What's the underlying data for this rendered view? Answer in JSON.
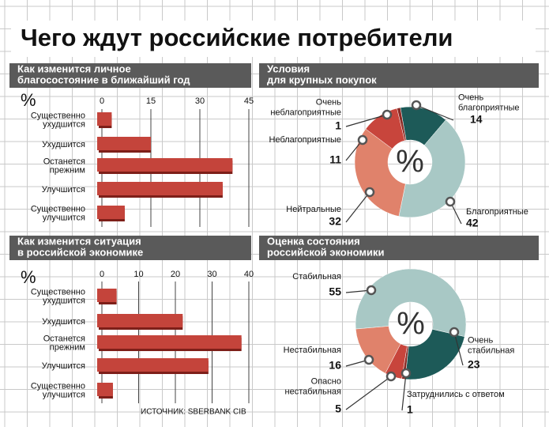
{
  "title": "Чего ждут российские потребители",
  "source": "ИСТОЧНИК: SBERBANK CIB",
  "chart_data": [
    {
      "type": "bar",
      "orientation": "horizontal",
      "title": "Как изменится личное\nблагосостояние в ближайший год",
      "unit_label": "%",
      "categories": [
        "Существенно\nухудшится",
        "Ухудшится",
        "Останется\nпрежним",
        "Улучшится",
        "Существенно\nулучшится"
      ],
      "values": [
        3,
        15,
        40,
        37,
        7
      ],
      "color": "#c4443b",
      "xlim": [
        0,
        45
      ],
      "xticks": [
        0,
        15,
        30,
        45
      ],
      "grid": true
    },
    {
      "type": "donut",
      "title": "Условия\nдля крупных покупок",
      "center_label": "%",
      "categories": [
        "Очень\nблагоприятные",
        "Благоприятные",
        "Нейтральные",
        "Неблагоприятные",
        "Очень\nнеблагоприятные"
      ],
      "values": [
        14,
        42,
        32,
        11,
        1
      ],
      "colors": [
        "#1d5a58",
        "#a8c8c5",
        "#e0826b",
        "#c8453c",
        "#8b2b25"
      ]
    },
    {
      "type": "bar",
      "orientation": "horizontal",
      "title": "Как изменится ситуация\nв российской экономике",
      "unit_label": "%",
      "categories": [
        "Существенно\nухудшится",
        "Ухудшится",
        "Останется\nпрежним",
        "Улучшится",
        "Существенно\nулучшится"
      ],
      "values": [
        4,
        22,
        38,
        29,
        3
      ],
      "color": "#c4443b",
      "xlim": [
        0,
        40
      ],
      "xticks": [
        0,
        10,
        20,
        30,
        40
      ],
      "grid": true
    },
    {
      "type": "donut",
      "title": "Оценка состояния\nроссийской экономики",
      "center_label": "%",
      "categories": [
        "Стабильная",
        "Очень\nстабильная",
        "Затруднились с ответом",
        "Опасно\nнестабильная",
        "Нестабильная"
      ],
      "values": [
        55,
        23,
        1,
        5,
        16
      ],
      "colors": [
        "#a8c8c5",
        "#1d5a58",
        "#8b2b25",
        "#c8453c",
        "#e0826b"
      ]
    }
  ]
}
